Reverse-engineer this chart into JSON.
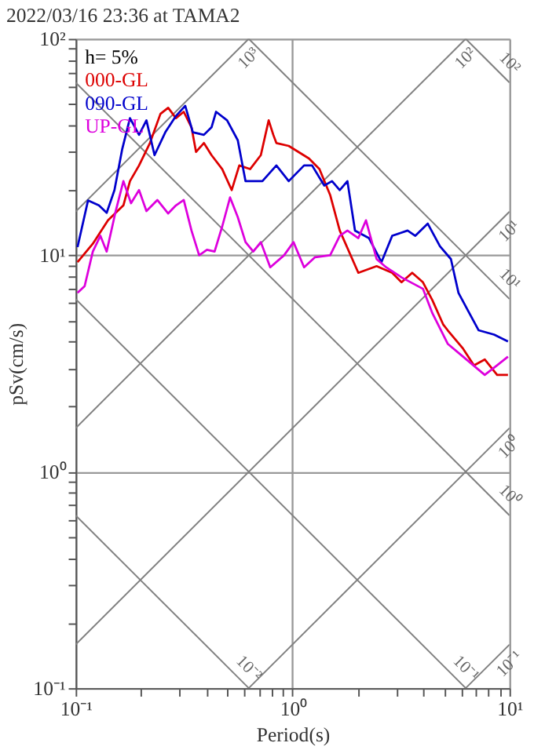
{
  "chart_data": {
    "type": "line",
    "title": "2022/03/16 23:36 at TAMA2",
    "xlabel": "Period(s)",
    "ylabel": "pSv(cm/s)",
    "legend_title": "h= 5%",
    "legend": "top left",
    "log": "xy",
    "grid": true,
    "xlim": [
      0.1,
      10
    ],
    "ylim": [
      0.1,
      100
    ],
    "xticks": [
      {
        "value": 0.1,
        "label": "10⁻¹"
      },
      {
        "value": 0.2,
        "label": null
      },
      {
        "value": 0.3,
        "label": null
      },
      {
        "value": 0.4,
        "label": null
      },
      {
        "value": 0.5,
        "label": null
      },
      {
        "value": 0.6,
        "label": null
      },
      {
        "value": 0.7,
        "label": null
      },
      {
        "value": 0.8,
        "label": null
      },
      {
        "value": 0.9,
        "label": null
      },
      {
        "value": 1,
        "label": "10⁰"
      },
      {
        "value": 2,
        "label": null
      },
      {
        "value": 3,
        "label": null
      },
      {
        "value": 4,
        "label": null
      },
      {
        "value": 5,
        "label": null
      },
      {
        "value": 6,
        "label": null
      },
      {
        "value": 7,
        "label": null
      },
      {
        "value": 8,
        "label": null
      },
      {
        "value": 9,
        "label": null
      },
      {
        "value": 10,
        "label": "10¹"
      }
    ],
    "yticks": [
      {
        "value": 0.1,
        "label": "10⁻¹"
      },
      {
        "value": 0.2,
        "label": null
      },
      {
        "value": 0.3,
        "label": null
      },
      {
        "value": 0.4,
        "label": null
      },
      {
        "value": 0.5,
        "label": null
      },
      {
        "value": 0.6,
        "label": null
      },
      {
        "value": 0.7,
        "label": null
      },
      {
        "value": 0.8,
        "label": null
      },
      {
        "value": 0.9,
        "label": null
      },
      {
        "value": 1,
        "label": "10⁰"
      },
      {
        "value": 2,
        "label": null
      },
      {
        "value": 3,
        "label": null
      },
      {
        "value": 4,
        "label": null
      },
      {
        "value": 5,
        "label": null
      },
      {
        "value": 6,
        "label": null
      },
      {
        "value": 7,
        "label": null
      },
      {
        "value": 8,
        "label": null
      },
      {
        "value": 9,
        "label": null
      },
      {
        "value": 10,
        "label": "10¹"
      },
      {
        "value": 20,
        "label": null
      },
      {
        "value": 30,
        "label": null
      },
      {
        "value": 40,
        "label": null
      },
      {
        "value": 50,
        "label": null
      },
      {
        "value": 60,
        "label": null
      },
      {
        "value": 70,
        "label": null
      },
      {
        "value": 80,
        "label": null
      },
      {
        "value": 90,
        "label": null
      },
      {
        "value": 100,
        "label": "10²"
      }
    ],
    "series": [
      {
        "name": "10⁻¹",
        "color": "#808080",
        "x": [
          6.283,
          10
        ],
        "values": [
          0.1,
          0.159
        ]
      },
      {
        "name": "10⁰",
        "color": "#808080",
        "x": [
          0.628,
          10
        ],
        "values": [
          0.1,
          1.59
        ]
      },
      {
        "name": "10¹",
        "color": "#808080",
        "x": [
          0.1,
          10
        ],
        "values": [
          0.159,
          15.9
        ]
      },
      {
        "name": "10²",
        "color": "#808080",
        "x": [
          0.1,
          6.283
        ],
        "values": [
          1.59,
          100
        ]
      },
      {
        "name": "10³",
        "color": "#808080",
        "x": [
          0.1,
          0.628
        ],
        "values": [
          15.9,
          100
        ]
      },
      {
        "name": "10⁻²",
        "color": "#808080",
        "x": [
          0.1,
          0.628
        ],
        "values": [
          0.628,
          0.1
        ]
      },
      {
        "name": "10⁻¹",
        "color": "#808080",
        "x": [
          0.1,
          6.283
        ],
        "values": [
          6.28,
          0.1
        ]
      },
      {
        "name": "10⁰",
        "color": "#808080",
        "x": [
          0.1,
          10
        ],
        "values": [
          62.8,
          0.628
        ]
      },
      {
        "name": "10¹",
        "color": "#808080",
        "x": [
          0.628,
          10
        ],
        "values": [
          100,
          6.28
        ]
      },
      {
        "name": "10²",
        "color": "#808080",
        "x": [
          6.283,
          10
        ],
        "values": [
          100,
          62.8
        ]
      },
      {
        "name": "000-GL",
        "color": "#dd0000",
        "x": [
          0.102,
          0.12,
          0.141,
          0.166,
          0.178,
          0.196,
          0.22,
          0.246,
          0.267,
          0.29,
          0.315,
          0.342,
          0.359,
          0.39,
          0.423,
          0.474,
          0.524,
          0.568,
          0.637,
          0.714,
          0.776,
          0.815,
          0.842,
          0.96,
          1.19,
          1.33,
          1.49,
          1.65,
          2.01,
          2.44,
          2.88,
          3.18,
          3.56,
          3.99,
          4.41,
          4.94,
          5.19,
          6.11,
          6.86,
          7.69,
          8.77,
          9.84
        ],
        "values": [
          9.3,
          11.3,
          14.5,
          17,
          22,
          26,
          33,
          45,
          48,
          43,
          46,
          39,
          30,
          33,
          29,
          25,
          20,
          26,
          25,
          29,
          42,
          36,
          33,
          32,
          28,
          25,
          19,
          13,
          8.3,
          8.9,
          8.3,
          7.5,
          8.3,
          7.5,
          6.2,
          4.8,
          4.5,
          3.7,
          3.1,
          3.3,
          2.8,
          2.8
        ]
      },
      {
        "name": "090-GL",
        "color": "#0000cc",
        "x": [
          0.102,
          0.114,
          0.128,
          0.139,
          0.151,
          0.164,
          0.178,
          0.196,
          0.212,
          0.231,
          0.259,
          0.29,
          0.32,
          0.347,
          0.39,
          0.423,
          0.444,
          0.499,
          0.559,
          0.607,
          0.659,
          0.726,
          0.842,
          0.96,
          1.13,
          1.23,
          1.4,
          1.52,
          1.65,
          1.79,
          1.94,
          2.25,
          2.57,
          2.88,
          3.39,
          3.68,
          4.2,
          4.78,
          5.37,
          5.82,
          6.53,
          7.21,
          8.49,
          9.84
        ],
        "values": [
          10.9,
          17.9,
          17,
          15.7,
          20,
          31,
          43,
          36,
          42,
          29,
          37,
          44,
          49,
          37,
          36,
          39,
          46,
          42,
          34,
          22,
          22,
          22,
          26,
          22,
          26,
          26,
          21,
          22,
          20,
          22,
          13,
          12,
          9.3,
          12.3,
          13,
          12.3,
          14,
          11,
          9.6,
          6.7,
          5.4,
          4.5,
          4.3,
          4
        ]
      },
      {
        "name": "UP-GL",
        "color": "#dd00dd",
        "x": [
          0.102,
          0.11,
          0.12,
          0.13,
          0.139,
          0.153,
          0.166,
          0.18,
          0.196,
          0.212,
          0.238,
          0.267,
          0.29,
          0.315,
          0.342,
          0.371,
          0.403,
          0.437,
          0.474,
          0.515,
          0.559,
          0.607,
          0.659,
          0.714,
          0.789,
          0.914,
          1.01,
          1.13,
          1.27,
          1.49,
          1.65,
          1.79,
          2.01,
          2.18,
          2.44,
          2.7,
          3.18,
          3.99,
          4.41,
          5.19,
          6.11,
          7.69,
          8.77,
          9.84
        ],
        "values": [
          6.7,
          7.2,
          10.4,
          12.3,
          10.4,
          16,
          22,
          17.4,
          20,
          16,
          18,
          15.6,
          17,
          18,
          13,
          10,
          10.6,
          10.4,
          13.6,
          18.5,
          15,
          11.5,
          10.4,
          11.5,
          8.8,
          10,
          11.5,
          8.8,
          9.8,
          10,
          12.3,
          13,
          12,
          14.5,
          9.6,
          8.8,
          7.9,
          7,
          5.4,
          3.9,
          3.4,
          2.8,
          3.1,
          3.4
        ]
      }
    ]
  }
}
